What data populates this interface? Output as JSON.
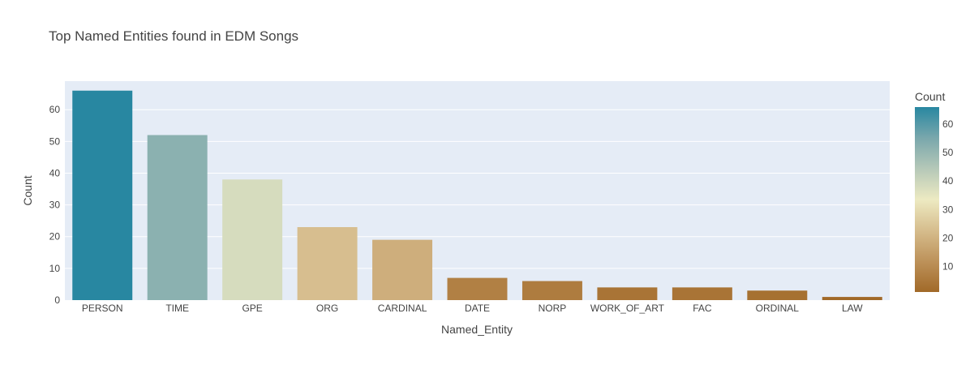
{
  "chart_data": {
    "type": "bar",
    "title": "Top Named Entities found in EDM Songs",
    "xlabel": "Named_Entity",
    "ylabel": "Count",
    "categories": [
      "PERSON",
      "TIME",
      "GPE",
      "ORG",
      "CARDINAL",
      "DATE",
      "NORP",
      "WORK_OF_ART",
      "FAC",
      "ORDINAL",
      "LAW"
    ],
    "values": [
      66,
      52,
      38,
      23,
      19,
      7,
      6,
      4,
      4,
      3,
      1
    ],
    "ylim": [
      0,
      69
    ],
    "yticks": [
      0,
      10,
      20,
      30,
      40,
      50,
      60
    ],
    "grid": true,
    "plot_bg": "#e5ecf6",
    "colorbar": {
      "title": "Count",
      "range": [
        1,
        66
      ],
      "ticks": [
        10,
        20,
        30,
        40,
        50,
        60
      ],
      "colorscale": [
        "#a16928",
        "#bd925a",
        "#d6bd8d",
        "#edeac2",
        "#b5c8b8",
        "#79a7ac",
        "#2887a1"
      ]
    }
  }
}
